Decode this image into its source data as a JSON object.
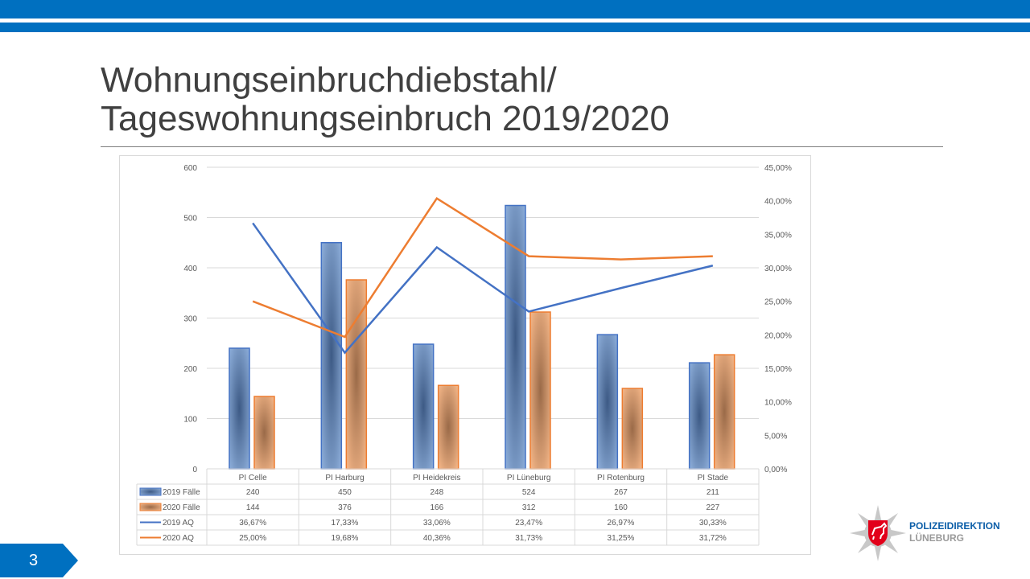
{
  "slide": {
    "title_line1": "Wohnungseinbruchdiebstahl/",
    "title_line2": "Tageswohnungseinbruch 2019/2020",
    "page_number": "3",
    "logo": {
      "line1": "POLIZEIDIREKTION",
      "line2": "LÜNEBURG"
    }
  },
  "colors": {
    "brand": "#0070c0",
    "series2019": "#4472c4",
    "series2020": "#ed7d31"
  },
  "chart_data": {
    "type": "bar",
    "categories": [
      "PI Celle",
      "PI Harburg",
      "PI Heidekreis",
      "PI Lüneburg",
      "PI Rotenburg",
      "PI Stade"
    ],
    "series": [
      {
        "name": "2019 Fälle",
        "type": "bar",
        "axis": "left",
        "values": [
          240,
          450,
          248,
          524,
          267,
          211
        ],
        "labels": [
          "240",
          "450",
          "248",
          "524",
          "267",
          "211"
        ]
      },
      {
        "name": "2020 Fälle",
        "type": "bar",
        "axis": "left",
        "values": [
          144,
          376,
          166,
          312,
          160,
          227
        ],
        "labels": [
          "144",
          "376",
          "166",
          "312",
          "160",
          "227"
        ]
      },
      {
        "name": "2019 AQ",
        "type": "line",
        "axis": "right",
        "values": [
          36.67,
          17.33,
          33.06,
          23.47,
          26.97,
          30.33
        ],
        "labels": [
          "36,67%",
          "17,33%",
          "33,06%",
          "23,47%",
          "26,97%",
          "30,33%"
        ]
      },
      {
        "name": "2020 AQ",
        "type": "line",
        "axis": "right",
        "values": [
          25.0,
          19.68,
          40.36,
          31.73,
          31.25,
          31.72
        ],
        "labels": [
          "25,00%",
          "19,68%",
          "40,36%",
          "31,73%",
          "31,25%",
          "31,72%"
        ]
      }
    ],
    "ylim": [
      0,
      600
    ],
    "yticks": [
      "0",
      "100",
      "200",
      "300",
      "400",
      "500",
      "600"
    ],
    "y2lim": [
      0,
      45
    ],
    "y2ticks": [
      "0,00%",
      "5,00%",
      "10,00%",
      "15,00%",
      "20,00%",
      "25,00%",
      "30,00%",
      "35,00%",
      "40,00%",
      "45,00%"
    ],
    "grid": true,
    "legend": "data-table"
  }
}
